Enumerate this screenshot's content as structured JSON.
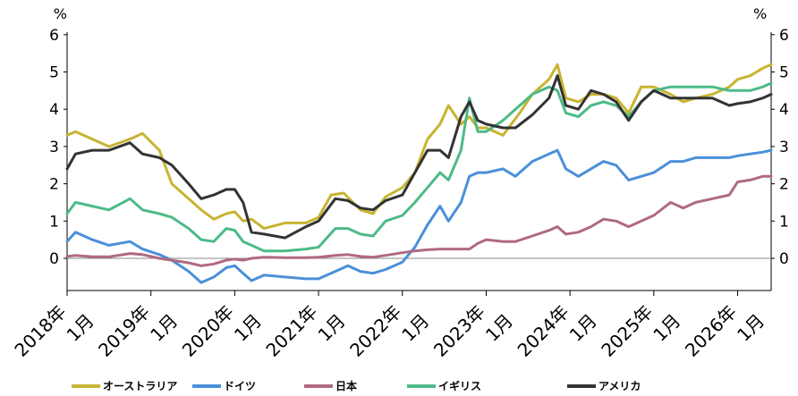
{
  "chart_data": {
    "type": "line",
    "y_unit_left": "%",
    "y_unit_right": "%",
    "ylim": [
      -0.8,
      6.2
    ],
    "yticks": [
      0,
      1,
      2,
      3,
      4,
      5,
      6
    ],
    "xlim": [
      2018.0,
      2026.4
    ],
    "x_ticks": [
      {
        "year": 2018,
        "label1": "2018年",
        "label2": "1月"
      },
      {
        "year": 2019,
        "label1": "2019年",
        "label2": "1月"
      },
      {
        "year": 2020,
        "label1": "2020年",
        "label2": "1月"
      },
      {
        "year": 2021,
        "label1": "2021年",
        "label2": "1月"
      },
      {
        "year": 2022,
        "label1": "2022年",
        "label2": "1月"
      },
      {
        "year": 2023,
        "label1": "2023年",
        "label2": "1月"
      },
      {
        "year": 2024,
        "label1": "2024年",
        "label2": "1月"
      },
      {
        "year": 2025,
        "label1": "2025年",
        "label2": "1月"
      },
      {
        "year": 2026,
        "label1": "2026年",
        "label2": "1月"
      }
    ],
    "zero_line": true,
    "legend_position": "bottom",
    "series": [
      {
        "name": "オーストラリア",
        "color": "#c8b432",
        "points": [
          [
            2018.0,
            3.3
          ],
          [
            2018.1,
            3.4
          ],
          [
            2018.3,
            3.2
          ],
          [
            2018.5,
            3.0
          ],
          [
            2018.75,
            3.2
          ],
          [
            2018.9,
            3.35
          ],
          [
            2019.1,
            2.9
          ],
          [
            2019.25,
            2.0
          ],
          [
            2019.5,
            1.5
          ],
          [
            2019.6,
            1.3
          ],
          [
            2019.75,
            1.05
          ],
          [
            2019.9,
            1.2
          ],
          [
            2020.0,
            1.25
          ],
          [
            2020.1,
            1.0
          ],
          [
            2020.2,
            1.05
          ],
          [
            2020.35,
            0.8
          ],
          [
            2020.6,
            0.95
          ],
          [
            2020.85,
            0.95
          ],
          [
            2021.0,
            1.1
          ],
          [
            2021.15,
            1.7
          ],
          [
            2021.3,
            1.75
          ],
          [
            2021.5,
            1.3
          ],
          [
            2021.65,
            1.2
          ],
          [
            2021.8,
            1.65
          ],
          [
            2022.0,
            1.9
          ],
          [
            2022.15,
            2.3
          ],
          [
            2022.3,
            3.2
          ],
          [
            2022.45,
            3.6
          ],
          [
            2022.55,
            4.1
          ],
          [
            2022.7,
            3.6
          ],
          [
            2022.8,
            3.8
          ],
          [
            2022.9,
            3.5
          ],
          [
            2023.0,
            3.5
          ],
          [
            2023.2,
            3.3
          ],
          [
            2023.4,
            3.9
          ],
          [
            2023.55,
            4.4
          ],
          [
            2023.75,
            4.8
          ],
          [
            2023.85,
            5.2
          ],
          [
            2023.95,
            4.3
          ],
          [
            2024.1,
            4.2
          ],
          [
            2024.25,
            4.4
          ],
          [
            2024.4,
            4.4
          ],
          [
            2024.55,
            4.3
          ],
          [
            2024.7,
            3.9
          ],
          [
            2024.85,
            4.6
          ],
          [
            2025.0,
            4.6
          ],
          [
            2025.2,
            4.4
          ],
          [
            2025.35,
            4.2
          ],
          [
            2025.5,
            4.3
          ],
          [
            2025.7,
            4.4
          ],
          [
            2025.9,
            4.6
          ],
          [
            2026.0,
            4.8
          ],
          [
            2026.15,
            4.9
          ],
          [
            2026.3,
            5.1
          ],
          [
            2026.4,
            5.2
          ]
        ]
      },
      {
        "name": "ドイツ",
        "color": "#4a90d9",
        "points": [
          [
            2018.0,
            0.45
          ],
          [
            2018.1,
            0.7
          ],
          [
            2018.3,
            0.5
          ],
          [
            2018.5,
            0.35
          ],
          [
            2018.75,
            0.45
          ],
          [
            2018.9,
            0.25
          ],
          [
            2019.1,
            0.1
          ],
          [
            2019.25,
            -0.05
          ],
          [
            2019.45,
            -0.35
          ],
          [
            2019.6,
            -0.65
          ],
          [
            2019.75,
            -0.5
          ],
          [
            2019.9,
            -0.25
          ],
          [
            2020.0,
            -0.2
          ],
          [
            2020.1,
            -0.4
          ],
          [
            2020.2,
            -0.6
          ],
          [
            2020.35,
            -0.45
          ],
          [
            2020.6,
            -0.5
          ],
          [
            2020.85,
            -0.55
          ],
          [
            2021.0,
            -0.55
          ],
          [
            2021.2,
            -0.35
          ],
          [
            2021.35,
            -0.2
          ],
          [
            2021.5,
            -0.35
          ],
          [
            2021.65,
            -0.4
          ],
          [
            2021.8,
            -0.3
          ],
          [
            2022.0,
            -0.1
          ],
          [
            2022.15,
            0.3
          ],
          [
            2022.3,
            0.9
          ],
          [
            2022.45,
            1.4
          ],
          [
            2022.55,
            1.0
          ],
          [
            2022.7,
            1.5
          ],
          [
            2022.8,
            2.2
          ],
          [
            2022.9,
            2.3
          ],
          [
            2023.0,
            2.3
          ],
          [
            2023.2,
            2.4
          ],
          [
            2023.35,
            2.2
          ],
          [
            2023.55,
            2.6
          ],
          [
            2023.75,
            2.8
          ],
          [
            2023.85,
            2.9
          ],
          [
            2023.95,
            2.4
          ],
          [
            2024.1,
            2.2
          ],
          [
            2024.25,
            2.4
          ],
          [
            2024.4,
            2.6
          ],
          [
            2024.55,
            2.5
          ],
          [
            2024.7,
            2.1
          ],
          [
            2024.85,
            2.2
          ],
          [
            2025.0,
            2.3
          ],
          [
            2025.2,
            2.6
          ],
          [
            2025.35,
            2.6
          ],
          [
            2025.5,
            2.7
          ],
          [
            2025.7,
            2.7
          ],
          [
            2025.9,
            2.7
          ],
          [
            2026.0,
            2.75
          ],
          [
            2026.15,
            2.8
          ],
          [
            2026.3,
            2.85
          ],
          [
            2026.4,
            2.9
          ]
        ]
      },
      {
        "name": "日本",
        "color": "#b06a80",
        "points": [
          [
            2018.0,
            0.05
          ],
          [
            2018.1,
            0.08
          ],
          [
            2018.3,
            0.04
          ],
          [
            2018.5,
            0.04
          ],
          [
            2018.75,
            0.13
          ],
          [
            2018.9,
            0.1
          ],
          [
            2019.1,
            0.0
          ],
          [
            2019.25,
            -0.05
          ],
          [
            2019.45,
            -0.12
          ],
          [
            2019.6,
            -0.2
          ],
          [
            2019.75,
            -0.15
          ],
          [
            2019.9,
            -0.05
          ],
          [
            2020.0,
            -0.02
          ],
          [
            2020.1,
            -0.05
          ],
          [
            2020.2,
            0.0
          ],
          [
            2020.35,
            0.03
          ],
          [
            2020.6,
            0.02
          ],
          [
            2020.85,
            0.02
          ],
          [
            2021.0,
            0.03
          ],
          [
            2021.2,
            0.08
          ],
          [
            2021.35,
            0.1
          ],
          [
            2021.5,
            0.05
          ],
          [
            2021.65,
            0.03
          ],
          [
            2021.8,
            0.08
          ],
          [
            2022.0,
            0.15
          ],
          [
            2022.15,
            0.2
          ],
          [
            2022.3,
            0.23
          ],
          [
            2022.45,
            0.25
          ],
          [
            2022.55,
            0.25
          ],
          [
            2022.7,
            0.25
          ],
          [
            2022.8,
            0.25
          ],
          [
            2022.9,
            0.4
          ],
          [
            2023.0,
            0.5
          ],
          [
            2023.2,
            0.45
          ],
          [
            2023.35,
            0.45
          ],
          [
            2023.55,
            0.6
          ],
          [
            2023.75,
            0.75
          ],
          [
            2023.85,
            0.85
          ],
          [
            2023.95,
            0.65
          ],
          [
            2024.1,
            0.7
          ],
          [
            2024.25,
            0.85
          ],
          [
            2024.4,
            1.05
          ],
          [
            2024.55,
            1.0
          ],
          [
            2024.7,
            0.85
          ],
          [
            2024.85,
            1.0
          ],
          [
            2025.0,
            1.15
          ],
          [
            2025.2,
            1.5
          ],
          [
            2025.35,
            1.35
          ],
          [
            2025.5,
            1.5
          ],
          [
            2025.7,
            1.6
          ],
          [
            2025.9,
            1.7
          ],
          [
            2026.0,
            2.05
          ],
          [
            2026.15,
            2.1
          ],
          [
            2026.3,
            2.2
          ],
          [
            2026.4,
            2.2
          ]
        ]
      },
      {
        "name": "イギリス",
        "color": "#4dba88",
        "points": [
          [
            2018.0,
            1.2
          ],
          [
            2018.1,
            1.5
          ],
          [
            2018.3,
            1.4
          ],
          [
            2018.5,
            1.3
          ],
          [
            2018.75,
            1.6
          ],
          [
            2018.9,
            1.3
          ],
          [
            2019.1,
            1.2
          ],
          [
            2019.25,
            1.1
          ],
          [
            2019.45,
            0.8
          ],
          [
            2019.6,
            0.5
          ],
          [
            2019.75,
            0.45
          ],
          [
            2019.9,
            0.8
          ],
          [
            2020.0,
            0.75
          ],
          [
            2020.1,
            0.45
          ],
          [
            2020.2,
            0.35
          ],
          [
            2020.35,
            0.2
          ],
          [
            2020.6,
            0.2
          ],
          [
            2020.85,
            0.25
          ],
          [
            2021.0,
            0.3
          ],
          [
            2021.2,
            0.8
          ],
          [
            2021.35,
            0.8
          ],
          [
            2021.5,
            0.65
          ],
          [
            2021.65,
            0.6
          ],
          [
            2021.8,
            1.0
          ],
          [
            2022.0,
            1.15
          ],
          [
            2022.15,
            1.5
          ],
          [
            2022.3,
            1.9
          ],
          [
            2022.45,
            2.3
          ],
          [
            2022.55,
            2.1
          ],
          [
            2022.7,
            2.9
          ],
          [
            2022.8,
            4.3
          ],
          [
            2022.9,
            3.4
          ],
          [
            2023.0,
            3.4
          ],
          [
            2023.2,
            3.7
          ],
          [
            2023.35,
            4.0
          ],
          [
            2023.55,
            4.4
          ],
          [
            2023.75,
            4.6
          ],
          [
            2023.85,
            4.5
          ],
          [
            2023.95,
            3.9
          ],
          [
            2024.1,
            3.8
          ],
          [
            2024.25,
            4.1
          ],
          [
            2024.4,
            4.2
          ],
          [
            2024.55,
            4.1
          ],
          [
            2024.7,
            3.8
          ],
          [
            2024.85,
            4.2
          ],
          [
            2025.0,
            4.5
          ],
          [
            2025.2,
            4.6
          ],
          [
            2025.35,
            4.6
          ],
          [
            2025.5,
            4.6
          ],
          [
            2025.7,
            4.6
          ],
          [
            2025.9,
            4.5
          ],
          [
            2026.0,
            4.5
          ],
          [
            2026.15,
            4.5
          ],
          [
            2026.3,
            4.6
          ],
          [
            2026.4,
            4.7
          ]
        ]
      },
      {
        "name": "アメリカ",
        "color": "#333333",
        "points": [
          [
            2018.0,
            2.4
          ],
          [
            2018.1,
            2.8
          ],
          [
            2018.3,
            2.9
          ],
          [
            2018.5,
            2.9
          ],
          [
            2018.75,
            3.1
          ],
          [
            2018.9,
            2.8
          ],
          [
            2019.1,
            2.7
          ],
          [
            2019.25,
            2.5
          ],
          [
            2019.45,
            2.0
          ],
          [
            2019.6,
            1.6
          ],
          [
            2019.75,
            1.7
          ],
          [
            2019.9,
            1.85
          ],
          [
            2020.0,
            1.85
          ],
          [
            2020.1,
            1.5
          ],
          [
            2020.2,
            0.7
          ],
          [
            2020.35,
            0.65
          ],
          [
            2020.6,
            0.55
          ],
          [
            2020.85,
            0.85
          ],
          [
            2021.0,
            1.0
          ],
          [
            2021.2,
            1.6
          ],
          [
            2021.35,
            1.55
          ],
          [
            2021.5,
            1.35
          ],
          [
            2021.65,
            1.3
          ],
          [
            2021.8,
            1.55
          ],
          [
            2022.0,
            1.7
          ],
          [
            2022.15,
            2.3
          ],
          [
            2022.3,
            2.9
          ],
          [
            2022.45,
            2.9
          ],
          [
            2022.55,
            2.7
          ],
          [
            2022.7,
            3.8
          ],
          [
            2022.8,
            4.2
          ],
          [
            2022.9,
            3.7
          ],
          [
            2023.0,
            3.6
          ],
          [
            2023.2,
            3.5
          ],
          [
            2023.35,
            3.5
          ],
          [
            2023.55,
            3.85
          ],
          [
            2023.75,
            4.3
          ],
          [
            2023.85,
            4.9
          ],
          [
            2023.95,
            4.1
          ],
          [
            2024.1,
            4.0
          ],
          [
            2024.25,
            4.5
          ],
          [
            2024.4,
            4.4
          ],
          [
            2024.55,
            4.2
          ],
          [
            2024.7,
            3.7
          ],
          [
            2024.85,
            4.2
          ],
          [
            2025.0,
            4.5
          ],
          [
            2025.2,
            4.3
          ],
          [
            2025.35,
            4.3
          ],
          [
            2025.5,
            4.3
          ],
          [
            2025.7,
            4.3
          ],
          [
            2025.9,
            4.1
          ],
          [
            2026.0,
            4.15
          ],
          [
            2026.15,
            4.2
          ],
          [
            2026.3,
            4.3
          ],
          [
            2026.4,
            4.4
          ]
        ]
      }
    ]
  }
}
